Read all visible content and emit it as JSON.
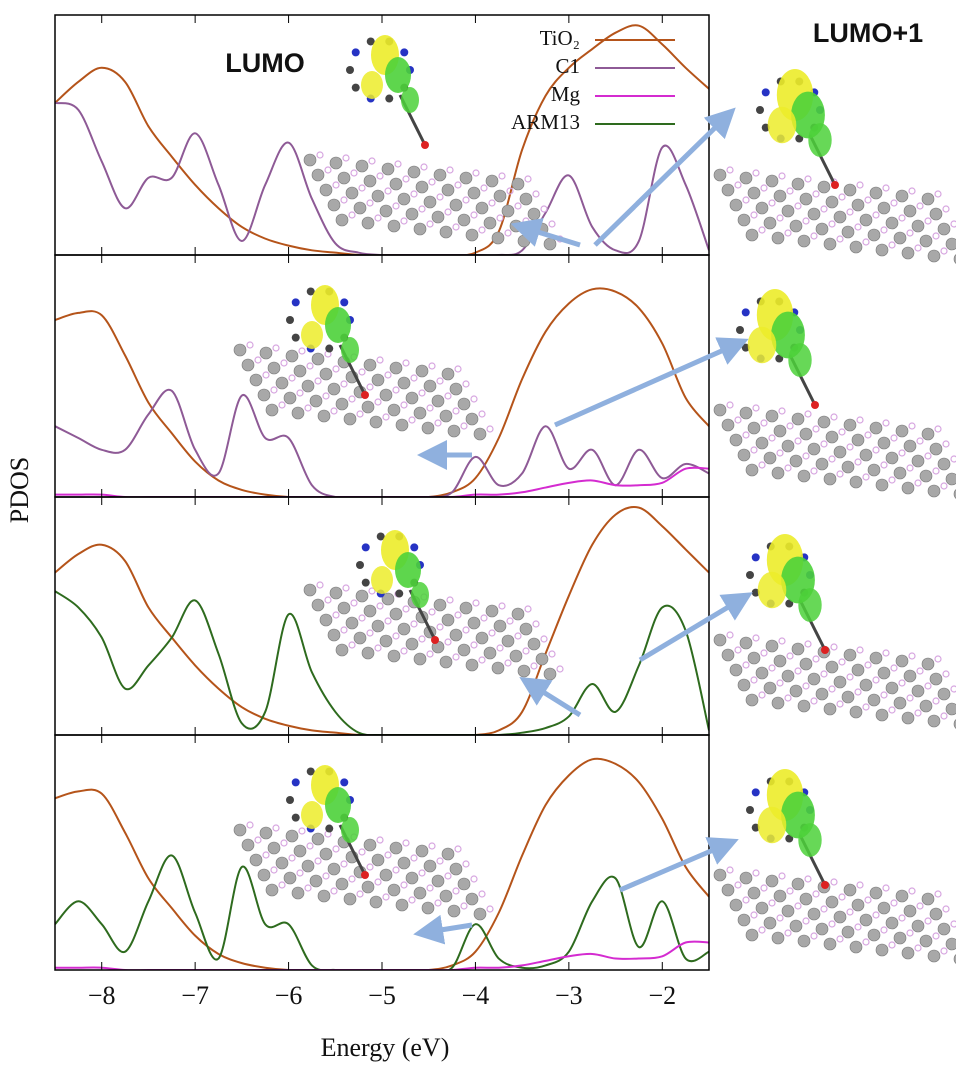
{
  "chart_data": [
    {
      "type": "line",
      "x": [
        -8.5,
        -8.25,
        -8,
        -7.75,
        -7.5,
        -7.25,
        -7,
        -6.75,
        -6.5,
        -6.25,
        -6,
        -5.75,
        -5.5,
        -5.25,
        -5,
        -4.75,
        -4.5,
        -4.25,
        -4,
        -3.75,
        -3.5,
        -3.25,
        -3,
        -2.75,
        -2.5,
        -2.25,
        -2,
        -1.75,
        -1.5
      ],
      "xlim": [
        -8.5,
        -1.5
      ],
      "ylim": [
        0,
        1
      ],
      "annotations": [
        "LUMO",
        "LUMO+1"
      ],
      "series": [
        {
          "name": "TiO₂",
          "color": "#b5541a",
          "values": [
            0.65,
            0.74,
            0.8,
            0.74,
            0.55,
            0.42,
            0.3,
            0.2,
            0.12,
            0.07,
            0.04,
            0.02,
            0.01,
            0,
            0,
            0,
            0,
            0,
            0.01,
            0.1,
            0.45,
            0.68,
            0.8,
            0.88,
            0.95,
            0.98,
            0.9,
            0.8,
            0.71
          ]
        },
        {
          "name": "C1",
          "color": "#8e5a96",
          "values": [
            0.65,
            0.62,
            0.4,
            0.2,
            0.33,
            0.33,
            0.52,
            0.3,
            0.06,
            0.3,
            0.48,
            0.24,
            0.05,
            0.01,
            0,
            0,
            0,
            0,
            0,
            0,
            0.02,
            0.18,
            0.34,
            0.12,
            0.02,
            0.06,
            0.46,
            0.3,
            0.02
          ]
        }
      ]
    },
    {
      "type": "line",
      "x": [
        -8.5,
        -8.25,
        -8,
        -7.75,
        -7.5,
        -7.25,
        -7,
        -6.75,
        -6.5,
        -6.25,
        -6,
        -5.75,
        -5.5,
        -5.25,
        -5,
        -4.75,
        -4.5,
        -4.25,
        -4,
        -3.75,
        -3.5,
        -3.25,
        -3,
        -2.75,
        -2.5,
        -2.25,
        -2,
        -1.75,
        -1.5
      ],
      "xlim": [
        -8.5,
        -1.5
      ],
      "ylim": [
        0,
        1
      ],
      "series": [
        {
          "name": "TiO₂",
          "color": "#b5541a",
          "values": [
            0.75,
            0.78,
            0.77,
            0.6,
            0.4,
            0.27,
            0.15,
            0.07,
            0.03,
            0.01,
            0,
            0,
            0,
            0,
            0,
            0,
            0,
            0.02,
            0.08,
            0.25,
            0.5,
            0.7,
            0.82,
            0.88,
            0.87,
            0.8,
            0.65,
            0.42,
            0.3
          ]
        },
        {
          "name": "C1",
          "color": "#8e5a96",
          "values": [
            0.3,
            0.25,
            0.2,
            0.2,
            0.35,
            0.45,
            0.2,
            0.1,
            0.43,
            0.25,
            0.25,
            0.05,
            0,
            0,
            0,
            0,
            0,
            0.02,
            0.17,
            0.05,
            0.1,
            0.3,
            0.12,
            0.2,
            0.05,
            0.2,
            0.08,
            0.14,
            0.1
          ]
        },
        {
          "name": "Mg",
          "color": "#d42bd0",
          "values": [
            0.01,
            0.01,
            0.01,
            0,
            0,
            0,
            0,
            0,
            0,
            0,
            0,
            0,
            0,
            0,
            0,
            0,
            0,
            0,
            0.01,
            0.01,
            0.02,
            0.04,
            0.06,
            0.07,
            0.05,
            0.05,
            0.06,
            0.12,
            0.12
          ]
        }
      ]
    },
    {
      "type": "line",
      "x": [
        -8.5,
        -8.25,
        -8,
        -7.75,
        -7.5,
        -7.25,
        -7,
        -6.75,
        -6.5,
        -6.25,
        -6,
        -5.75,
        -5.5,
        -5.25,
        -5,
        -4.75,
        -4.5,
        -4.25,
        -4,
        -3.75,
        -3.5,
        -3.25,
        -3,
        -2.75,
        -2.5,
        -2.25,
        -2,
        -1.75,
        -1.5
      ],
      "xlim": [
        -8.5,
        -1.5
      ],
      "ylim": [
        0,
        1
      ],
      "series": [
        {
          "name": "TiO₂",
          "color": "#b5541a",
          "values": [
            0.7,
            0.78,
            0.82,
            0.75,
            0.55,
            0.42,
            0.3,
            0.2,
            0.12,
            0.07,
            0.04,
            0.02,
            0.01,
            0,
            0,
            0,
            0,
            0,
            0,
            0.02,
            0.1,
            0.35,
            0.6,
            0.82,
            0.95,
            0.98,
            0.9,
            0.8,
            0.7
          ]
        },
        {
          "name": "ARM13",
          "color": "#2e6b1e",
          "values": [
            0.62,
            0.55,
            0.42,
            0.2,
            0.3,
            0.42,
            0.58,
            0.35,
            0.05,
            0.1,
            0.52,
            0.27,
            0.1,
            0.01,
            0,
            0,
            0,
            0,
            0,
            0,
            0.01,
            0.03,
            0.08,
            0.22,
            0.1,
            0.3,
            0.55,
            0.45,
            0.02
          ]
        }
      ]
    },
    {
      "type": "line",
      "x": [
        -8.5,
        -8.25,
        -8,
        -7.75,
        -7.5,
        -7.25,
        -7,
        -6.75,
        -6.5,
        -6.25,
        -6,
        -5.75,
        -5.5,
        -5.25,
        -5,
        -4.75,
        -4.5,
        -4.25,
        -4,
        -3.75,
        -3.5,
        -3.25,
        -3,
        -2.75,
        -2.5,
        -2.25,
        -2,
        -1.75,
        -1.5
      ],
      "xlim": [
        -8.5,
        -1.5
      ],
      "ylim": [
        0,
        1
      ],
      "xlabel": "Energy (eV)",
      "ylabel": "PDOS",
      "xticks": [
        {
          "value": -8,
          "label": "−8"
        },
        {
          "value": -7,
          "label": "−7"
        },
        {
          "value": -6,
          "label": "−6"
        },
        {
          "value": -5,
          "label": "−5"
        },
        {
          "value": -4,
          "label": "−4"
        },
        {
          "value": -3,
          "label": "−3"
        },
        {
          "value": -2,
          "label": "−2"
        }
      ],
      "series": [
        {
          "name": "TiO₂",
          "color": "#b5541a",
          "values": [
            0.75,
            0.78,
            0.77,
            0.6,
            0.4,
            0.27,
            0.15,
            0.07,
            0.03,
            0.01,
            0,
            0,
            0,
            0,
            0,
            0,
            0,
            0.02,
            0.08,
            0.25,
            0.5,
            0.72,
            0.85,
            0.92,
            0.9,
            0.82,
            0.66,
            0.45,
            0.32
          ]
        },
        {
          "name": "ARM13",
          "color": "#2e6b1e",
          "values": [
            0.2,
            0.3,
            0.2,
            0.08,
            0.3,
            0.5,
            0.25,
            0.05,
            0.45,
            0.2,
            0.2,
            0.02,
            0,
            0,
            0,
            0,
            0,
            0.01,
            0.2,
            0.05,
            0.01,
            0.02,
            0.08,
            0.3,
            0.4,
            0.1,
            0.3,
            0.05,
            0.08
          ]
        },
        {
          "name": "Mg",
          "color": "#d42bd0",
          "values": [
            0.01,
            0.01,
            0.01,
            0,
            0,
            0,
            0,
            0,
            0,
            0,
            0,
            0,
            0,
            0,
            0,
            0,
            0,
            0,
            0.01,
            0.01,
            0.02,
            0.04,
            0.06,
            0.07,
            0.05,
            0.05,
            0.06,
            0.12,
            0.12
          ]
        }
      ]
    }
  ]
}
